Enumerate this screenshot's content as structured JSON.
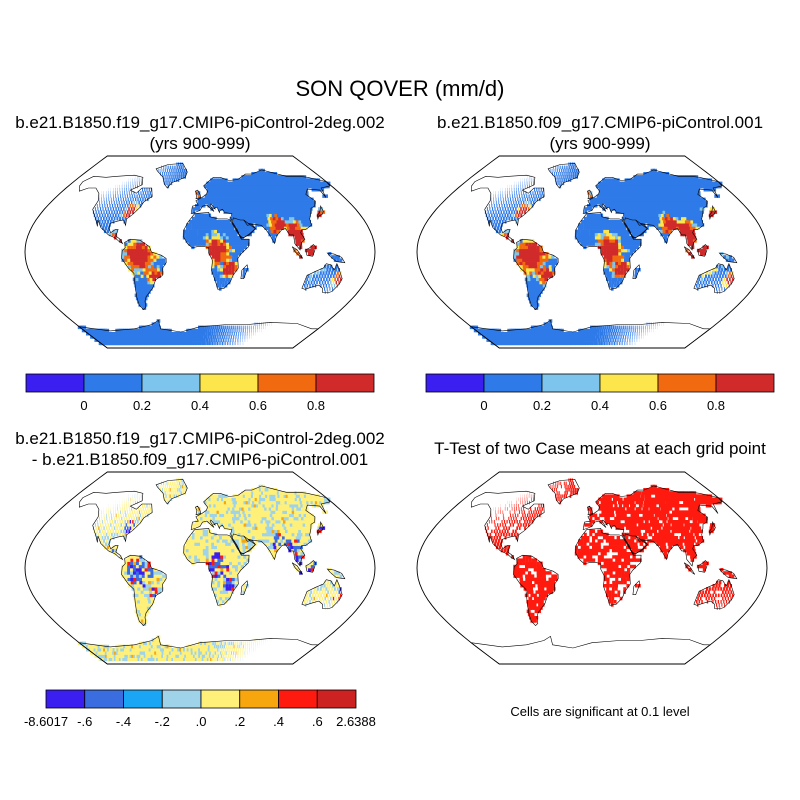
{
  "figure": {
    "title": "SON QOVER (mm/d)"
  },
  "panels": {
    "top_left": {
      "title_line1": "b.e21.B1850.f19_g17.CMIP6-piControl-2deg.002",
      "title_line2": "(yrs 900-999)"
    },
    "top_right": {
      "title_line1": "b.e21.B1850.f09_g17.CMIP6-piControl.001",
      "title_line2": "(yrs 900-999)"
    },
    "bottom_left": {
      "title_line1": "b.e21.B1850.f19_g17.CMIP6-piControl-2deg.002",
      "title_line2": "- b.e21.B1850.f09_g17.CMIP6-piControl.001"
    },
    "bottom_right": {
      "title_line1": "T-Test of two Case means at each grid point",
      "note": "Cells are significant at 0.1 level"
    }
  },
  "colorbars": {
    "mean": {
      "colors": [
        "#3b1ff0",
        "#2e7ae8",
        "#7ec5ed",
        "#fde64c",
        "#f26a10",
        "#d12a2a"
      ],
      "labels": [
        "0",
        "0.2",
        "0.4",
        "0.6",
        "0.8"
      ]
    },
    "diff": {
      "colors": [
        "#3b1ff0",
        "#3a6ee0",
        "#1aa6f5",
        "#9fd3ea",
        "#fff07a",
        "#f7a60d",
        "#ff1a0f",
        "#cc2222"
      ],
      "labels": [
        "-8.6017",
        "-.6",
        "-.4",
        "-.2",
        ".0",
        ".2",
        ".4",
        ".6",
        "2.6388"
      ]
    }
  },
  "map_colors": {
    "land_mean": "#2e7ae8",
    "wet_mean": "#d12a2a",
    "mid_mean": "#fde64c",
    "land_diff": "#fff07a",
    "diff_pos_small": "#9fd3ea",
    "diff_neg": "#3a6ee0",
    "significant": "#ff1a0f"
  }
}
